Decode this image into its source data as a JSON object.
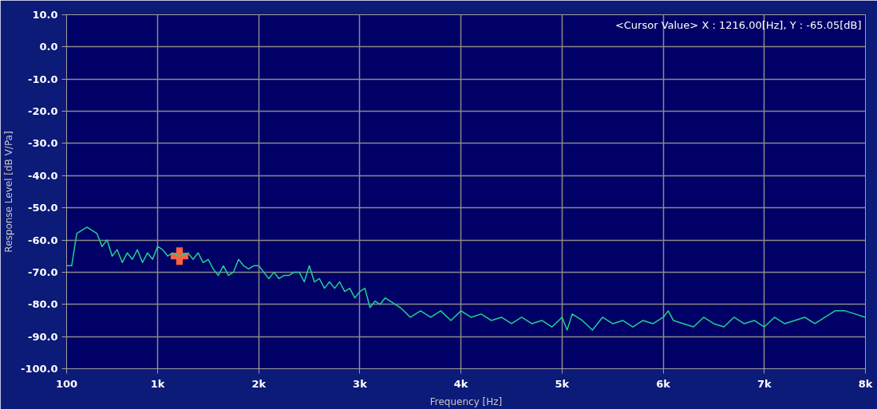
{
  "chart_data": {
    "type": "line",
    "xlabel": "Frequency [Hz]",
    "ylabel": "Response Level [dB V/Pa]",
    "xlim": [
      100,
      8000
    ],
    "ylim": [
      -100,
      10
    ],
    "xticks": [
      100,
      {
        "value": 1000,
        "label": "1k"
      },
      {
        "value": 2000,
        "label": "2k"
      },
      {
        "value": 3000,
        "label": "3k"
      },
      {
        "value": 4000,
        "label": "4k"
      },
      {
        "value": 5000,
        "label": "5k"
      },
      {
        "value": 6000,
        "label": "6k"
      },
      {
        "value": 7000,
        "label": "7k"
      },
      {
        "value": 8000,
        "label": "8k"
      }
    ],
    "yticks": [
      {
        "value": 10,
        "label": "10.0"
      },
      {
        "value": 0,
        "label": "0.0"
      },
      {
        "value": -10,
        "label": "-10.0"
      },
      {
        "value": -20,
        "label": "-20.0"
      },
      {
        "value": -30,
        "label": "-30.0"
      },
      {
        "value": -40,
        "label": "-40.0"
      },
      {
        "value": -50,
        "label": "-50.0"
      },
      {
        "value": -60,
        "label": "-60.0"
      },
      {
        "value": -70,
        "label": "-70.0"
      },
      {
        "value": -80,
        "label": "-80.0"
      },
      {
        "value": -90,
        "label": "-90.0"
      },
      {
        "value": -100,
        "label": "-100.0"
      }
    ],
    "grid": true,
    "annotations": [
      "<Cursor Value> X : 1216.00[Hz], Y : -65.05[dB]"
    ],
    "series": [
      {
        "color": "#20d090",
        "x": [
          100,
          150,
          200,
          250,
          300,
          350,
          400,
          450,
          500,
          550,
          600,
          650,
          700,
          750,
          800,
          850,
          900,
          950,
          1000,
          1050,
          1100,
          1150,
          1216,
          1300,
          1350,
          1400,
          1450,
          1500,
          1550,
          1600,
          1650,
          1700,
          1750,
          1800,
          1850,
          1900,
          1950,
          2000,
          2050,
          2100,
          2150,
          2200,
          2250,
          2300,
          2350,
          2400,
          2450,
          2500,
          2550,
          2600,
          2650,
          2700,
          2750,
          2800,
          2850,
          2900,
          2950,
          3000,
          3050,
          3100,
          3150,
          3200,
          3250,
          3300,
          3400,
          3500,
          3600,
          3700,
          3800,
          3900,
          4000,
          4100,
          4200,
          4300,
          4400,
          4500,
          4600,
          4700,
          4800,
          4900,
          5000,
          5050,
          5100,
          5200,
          5300,
          5400,
          5500,
          5600,
          5700,
          5800,
          5900,
          6000,
          6050,
          6100,
          6200,
          6300,
          6400,
          6500,
          6600,
          6700,
          6800,
          6900,
          7000,
          7100,
          7200,
          7300,
          7400,
          7500,
          7600,
          7700,
          7800,
          7900,
          8000
        ],
        "values": [
          -68,
          -68,
          -58,
          -57,
          -56,
          -57,
          -58,
          -62,
          -60,
          -65,
          -63,
          -67,
          -64,
          -66,
          -63,
          -67,
          -64,
          -66,
          -62,
          -63,
          -65,
          -64,
          -65,
          -64,
          -66,
          -64,
          -67,
          -66,
          -69,
          -71,
          -68,
          -71,
          -70,
          -66,
          -68,
          -69,
          -68,
          -68,
          -70,
          -72,
          -70,
          -72,
          -71,
          -71,
          -70,
          -70,
          -73,
          -68,
          -73,
          -72,
          -75,
          -73,
          -75,
          -73,
          -76,
          -75,
          -78,
          -76,
          -75,
          -81,
          -79,
          -80,
          -78,
          -79,
          -81,
          -84,
          -82,
          -84,
          -82,
          -85,
          -82,
          -84,
          -83,
          -85,
          -84,
          -86,
          -84,
          -86,
          -85,
          -87,
          -84,
          -88,
          -83,
          -85,
          -88,
          -84,
          -86,
          -85,
          -87,
          -85,
          -86,
          -84,
          -82,
          -85,
          -86,
          -87,
          -84,
          -86,
          -87,
          -84,
          -86,
          -85,
          -87,
          -84,
          -86,
          -85,
          -84,
          -86,
          -84,
          -82,
          -82,
          -83,
          -84
        ]
      },
      {
        "type": "scatter",
        "marker": "cross",
        "color": "#ff6040",
        "x": [
          1216
        ],
        "values": [
          -65
        ]
      }
    ]
  }
}
